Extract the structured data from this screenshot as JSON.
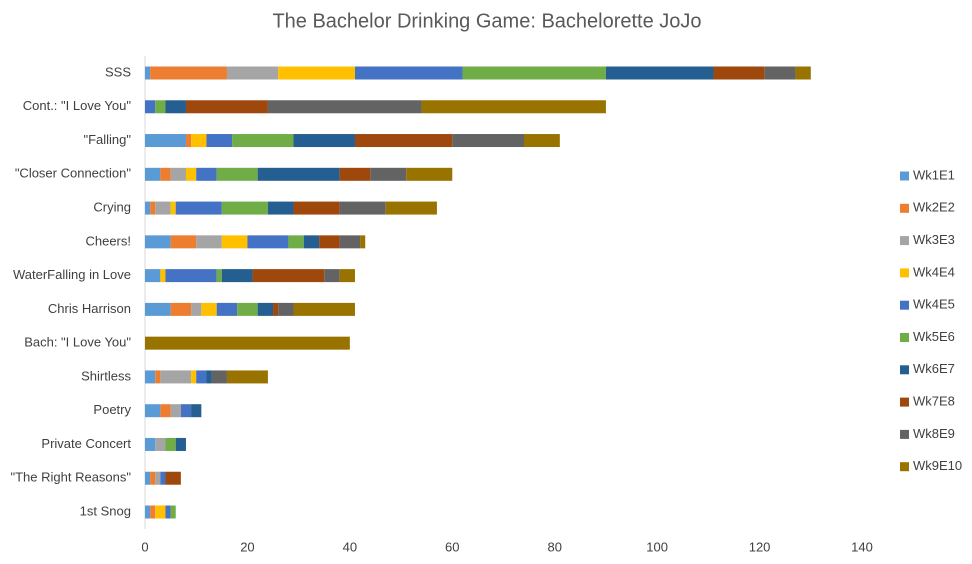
{
  "chart_data": {
    "type": "stacked-bar-horizontal",
    "title": "The Bachelor Drinking Game: Bachelorette JoJo",
    "categories": [
      "SSS",
      "Cont.: \"I Love You\"",
      "\"Falling\"",
      "\"Closer Connection\"",
      "Crying",
      "Cheers!",
      "WaterFalling in Love",
      "Chris Harrison",
      "Bach: \"I Love You\"",
      "Shirtless",
      "Poetry",
      "Private Concert",
      "\"The Right Reasons\"",
      "1st Snog"
    ],
    "series": [
      {
        "name": "Wk1E1",
        "color": "#5b9bd5",
        "values": [
          1,
          0,
          8,
          3,
          1,
          5,
          3,
          5,
          0,
          2,
          3,
          2,
          1,
          1
        ]
      },
      {
        "name": "Wk2E2",
        "color": "#ed7d31",
        "values": [
          15,
          0,
          1,
          2,
          1,
          5,
          0,
          4,
          0,
          1,
          2,
          0,
          1,
          1
        ]
      },
      {
        "name": "Wk3E3",
        "color": "#a5a5a5",
        "values": [
          10,
          0,
          0,
          3,
          3,
          5,
          0,
          2,
          0,
          6,
          2,
          2,
          1,
          0
        ]
      },
      {
        "name": "Wk4E4",
        "color": "#ffc000",
        "values": [
          15,
          0,
          3,
          2,
          1,
          5,
          1,
          3,
          0,
          1,
          0,
          0,
          0,
          2
        ]
      },
      {
        "name": "Wk4E5",
        "color": "#4472c4",
        "values": [
          21,
          2,
          5,
          4,
          9,
          8,
          10,
          4,
          0,
          2,
          2,
          0,
          1,
          1
        ]
      },
      {
        "name": "Wk5E6",
        "color": "#70ad47",
        "values": [
          28,
          2,
          12,
          8,
          9,
          3,
          1,
          4,
          0,
          0,
          0,
          2,
          0,
          1
        ]
      },
      {
        "name": "Wk6E7",
        "color": "#255e91",
        "values": [
          21,
          4,
          12,
          16,
          5,
          3,
          6,
          3,
          0,
          1,
          2,
          2,
          0,
          0
        ]
      },
      {
        "name": "Wk7E8",
        "color": "#9e480e",
        "values": [
          10,
          16,
          19,
          6,
          9,
          4,
          14,
          1,
          0,
          0,
          0,
          0,
          3,
          0
        ]
      },
      {
        "name": "Wk8E9",
        "color": "#636363",
        "values": [
          6,
          30,
          14,
          7,
          9,
          4,
          3,
          3,
          0,
          3,
          0,
          0,
          0,
          0
        ]
      },
      {
        "name": "Wk9E10",
        "color": "#997300",
        "values": [
          3,
          36,
          7,
          9,
          10,
          1,
          3,
          12,
          40,
          8,
          0,
          0,
          0,
          0
        ]
      }
    ],
    "xlim": [
      0,
      140
    ],
    "xticks": [
      0,
      20,
      40,
      60,
      80,
      100,
      120,
      140
    ],
    "grid": false,
    "legend": "right"
  }
}
